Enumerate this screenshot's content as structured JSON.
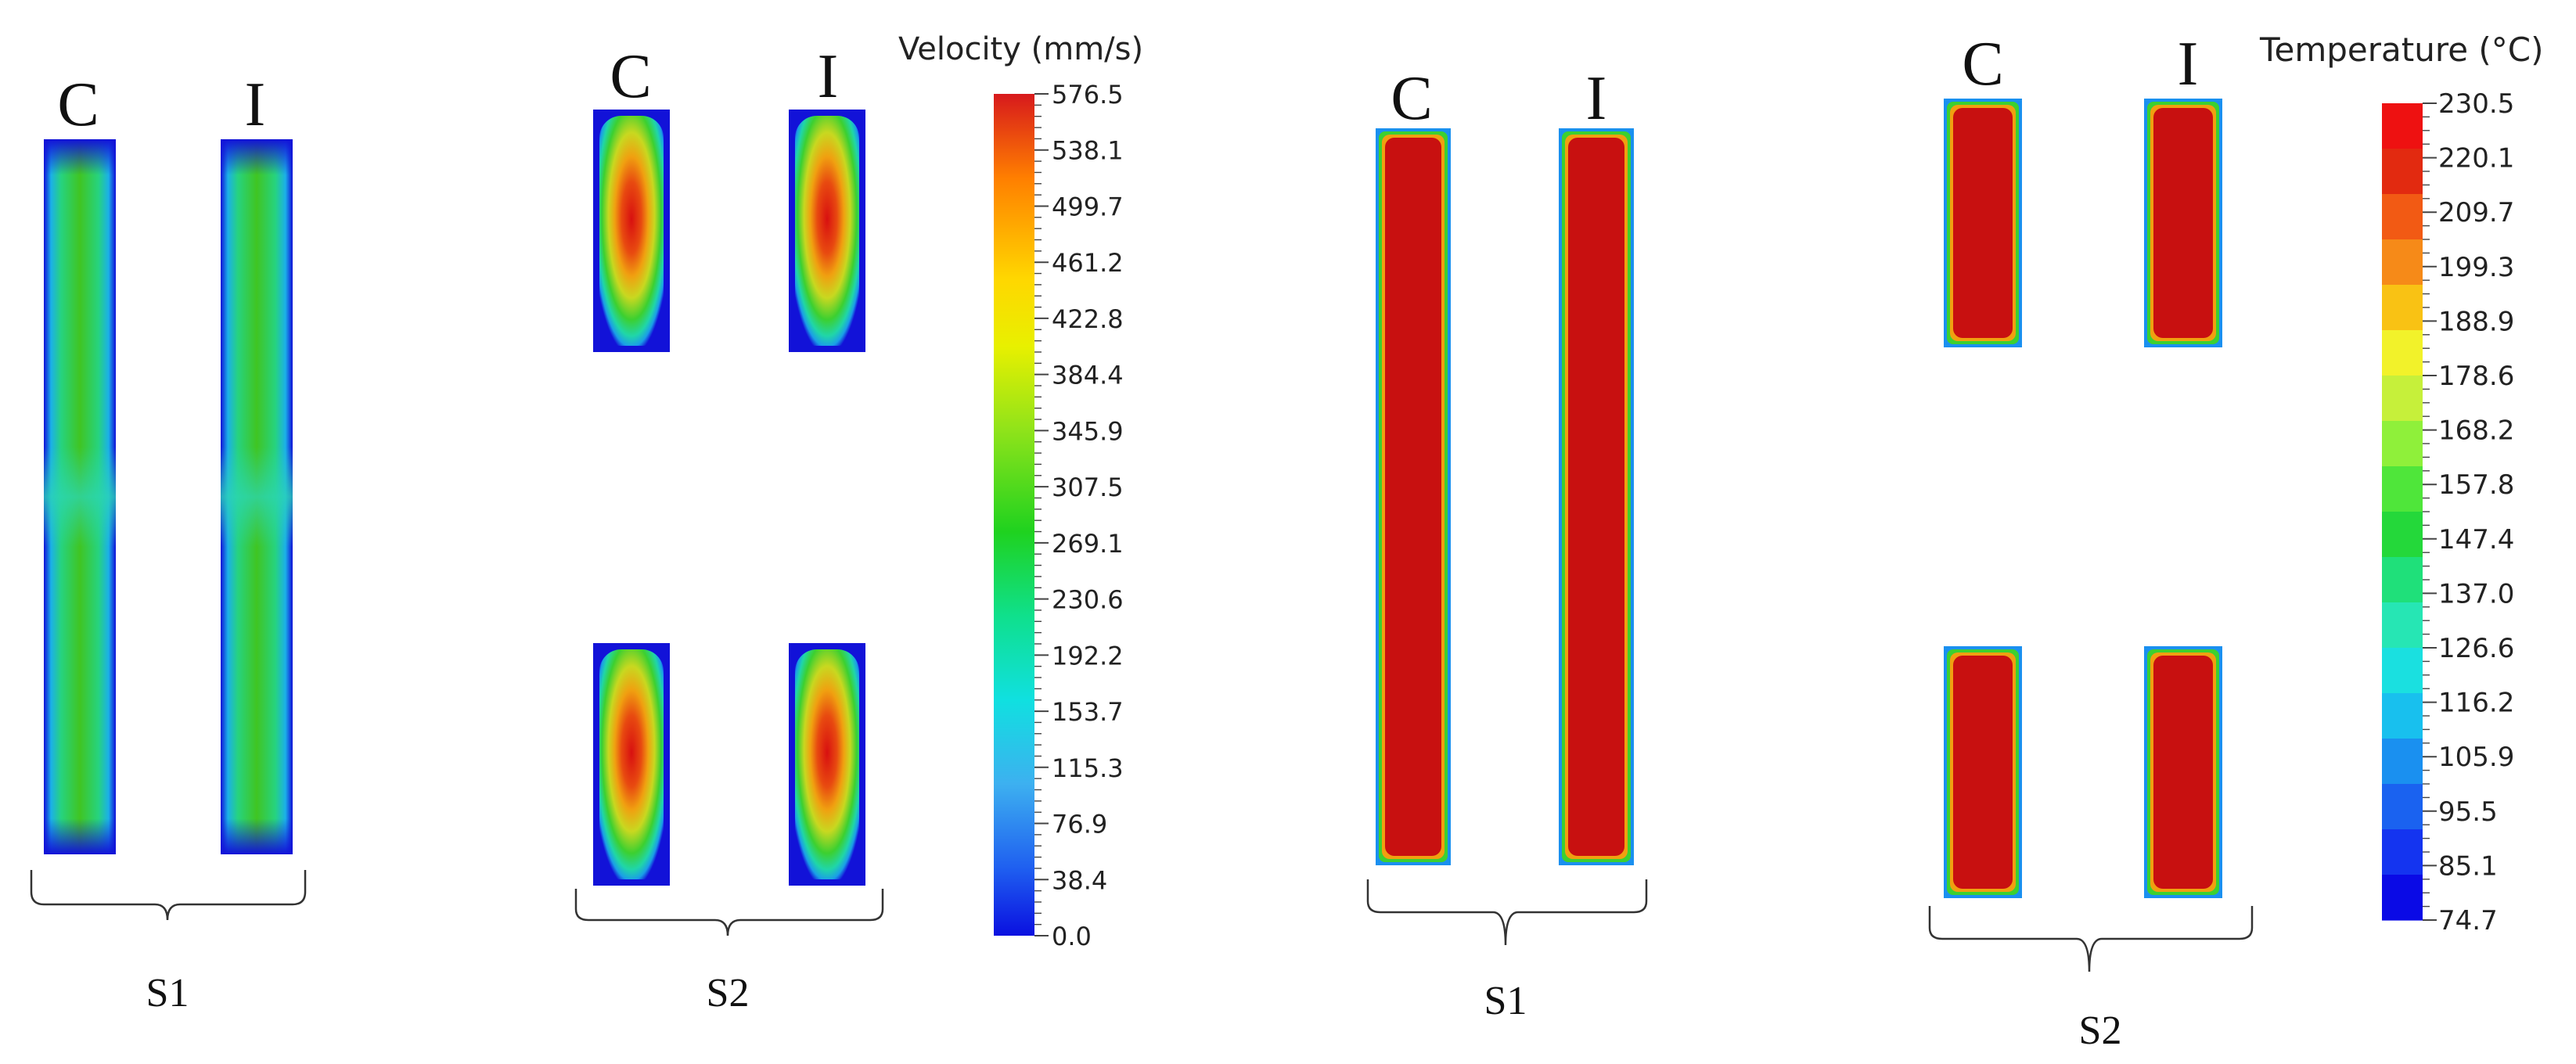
{
  "velocity_panel": {
    "s1": {
      "label_c": "C",
      "label_i": "I",
      "group_label": "S1"
    },
    "s2": {
      "label_c": "C",
      "label_i": "I",
      "group_label": "S2"
    },
    "colorbar": {
      "title": "Velocity (mm/s)",
      "ticks": [
        "576.5",
        "538.1",
        "499.7",
        "461.2",
        "422.8",
        "384.4",
        "345.9",
        "307.5",
        "269.1",
        "230.6",
        "192.2",
        "153.7",
        "115.3",
        "76.9",
        "38.4",
        "0.0"
      ],
      "min": 0.0,
      "max": 576.5,
      "colors": [
        "#d7191c",
        "#ff7f00",
        "#ffd700",
        "#e8f000",
        "#8fe31a",
        "#1fd21f",
        "#0fe08c",
        "#10e0e0",
        "#3db0f0",
        "#1f5ff0",
        "#0a10e0"
      ]
    }
  },
  "temperature_panel": {
    "s1": {
      "label_c": "C",
      "label_i": "I",
      "group_label": "S1"
    },
    "s2": {
      "label_c": "C",
      "label_i": "I",
      "group_label": "S2"
    },
    "colorbar": {
      "title": "Temperature (°C)",
      "ticks": [
        "230.5",
        "220.1",
        "209.7",
        "199.3",
        "188.9",
        "178.6",
        "168.2",
        "157.8",
        "147.4",
        "137.0",
        "126.6",
        "116.2",
        "105.9",
        "95.5",
        "85.1",
        "74.7"
      ],
      "min": 74.7,
      "max": 230.5,
      "bands": [
        "#ee1111",
        "#e22a10",
        "#f25a14",
        "#f68a18",
        "#f9c214",
        "#f2f22a",
        "#c6f03a",
        "#8ff03a",
        "#4fe63a",
        "#24d83a",
        "#1fe07a",
        "#26e6b4",
        "#1ae0e0",
        "#18c0ee",
        "#1a90f0",
        "#1a62f0",
        "#1434f0",
        "#0a0ae6"
      ]
    }
  }
}
